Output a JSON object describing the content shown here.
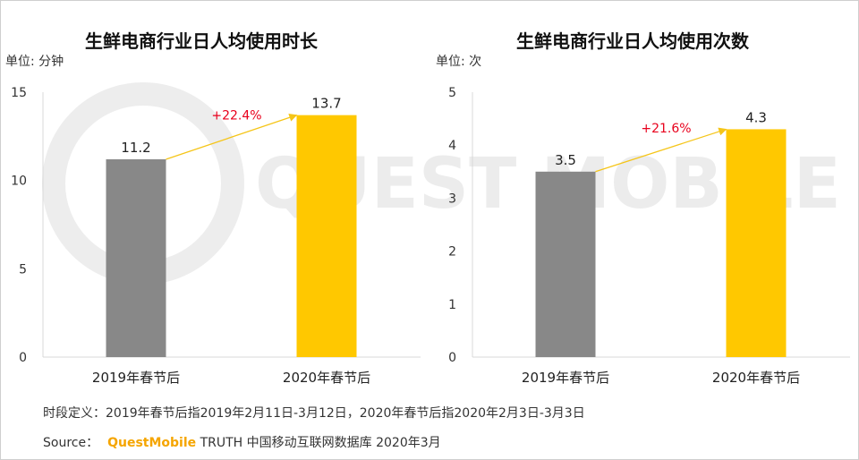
{
  "chart_data": [
    {
      "type": "bar",
      "title": "生鲜电商行业日人均使用时长",
      "unit": "单位: 分钟",
      "categories": [
        "2019年春节后",
        "2020年春节后"
      ],
      "values": [
        11.2,
        13.7
      ],
      "value_labels": [
        "11.2",
        "13.7"
      ],
      "ylim": [
        0,
        15
      ],
      "yticks": [
        0,
        5,
        10,
        15
      ],
      "bar_colors": [
        "#888888",
        "#FFC800"
      ],
      "growth_label": "+22.4%",
      "growth_color": "#E8001C",
      "arrow_color": "#F5C518",
      "grid": false
    },
    {
      "type": "bar",
      "title": "生鲜电商行业日人均使用次数",
      "unit": "单位: 次",
      "categories": [
        "2019年春节后",
        "2020年春节后"
      ],
      "values": [
        3.5,
        4.3
      ],
      "value_labels": [
        "3.5",
        "4.3"
      ],
      "ylim": [
        0,
        5
      ],
      "yticks": [
        0,
        1,
        2,
        3,
        4,
        5
      ],
      "bar_colors": [
        "#888888",
        "#FFC800"
      ],
      "growth_label": "+21.6%",
      "growth_color": "#E8001C",
      "arrow_color": "#F5C518",
      "grid": false
    }
  ],
  "footnote": "时段定义：2019年春节后指2019年2月11日-3月12日，2020年春节后指2020年2月3日-3月3日",
  "source": {
    "prefix": "Source：",
    "brand": "QuestMobile",
    "rest": " TRUTH 中国移动互联网数据库 2020年3月"
  },
  "watermark": "QUEST MOBILE"
}
